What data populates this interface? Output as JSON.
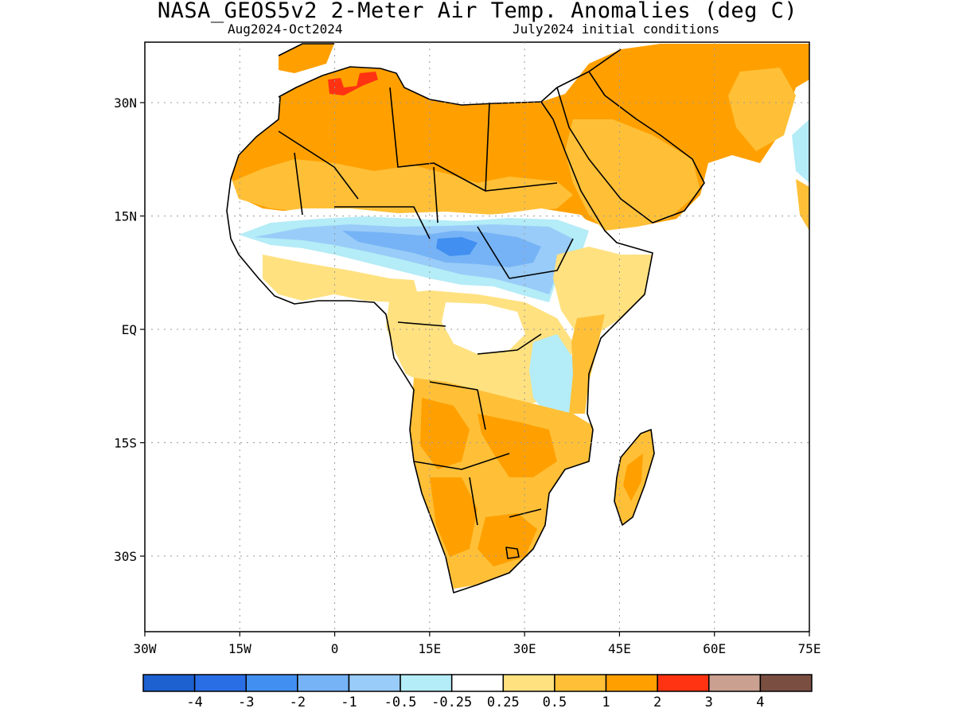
{
  "title": "NASA_GEOS5v2 2-Meter Air Temp. Anomalies (deg C)",
  "subtitle_left": "Aug2024-Oct2024",
  "subtitle_right": "July2024 initial conditions",
  "map": {
    "lon_range": [
      -30,
      75
    ],
    "lat_range": [
      -40,
      38
    ],
    "lon_ticks": [
      {
        "value": -30,
        "label": "30W"
      },
      {
        "value": -15,
        "label": "15W"
      },
      {
        "value": 0,
        "label": "0"
      },
      {
        "value": 15,
        "label": "15E"
      },
      {
        "value": 30,
        "label": "30E"
      },
      {
        "value": 45,
        "label": "45E"
      },
      {
        "value": 60,
        "label": "60E"
      },
      {
        "value": 75,
        "label": "75E"
      }
    ],
    "lat_ticks": [
      {
        "value": 30,
        "label": "30N"
      },
      {
        "value": 15,
        "label": "15N"
      },
      {
        "value": 0,
        "label": "EQ"
      },
      {
        "value": -15,
        "label": "15S"
      },
      {
        "value": -30,
        "label": "30S"
      }
    ],
    "grid": true,
    "colorbar": {
      "colors": [
        "#1d60d0",
        "#2a6ee6",
        "#418ff0",
        "#76b3f6",
        "#99ccf8",
        "#b4ecf7",
        "#ffffff",
        "#ffe180",
        "#ffc038",
        "#ffa000",
        "#ff3311",
        "#caa090",
        "#7a4f42"
      ],
      "labels": [
        "-4",
        "-3",
        "-2",
        "-1",
        "-0.5",
        "-0.25",
        "0.25",
        "0.5",
        "1",
        "2",
        "3",
        "4"
      ]
    }
  }
}
